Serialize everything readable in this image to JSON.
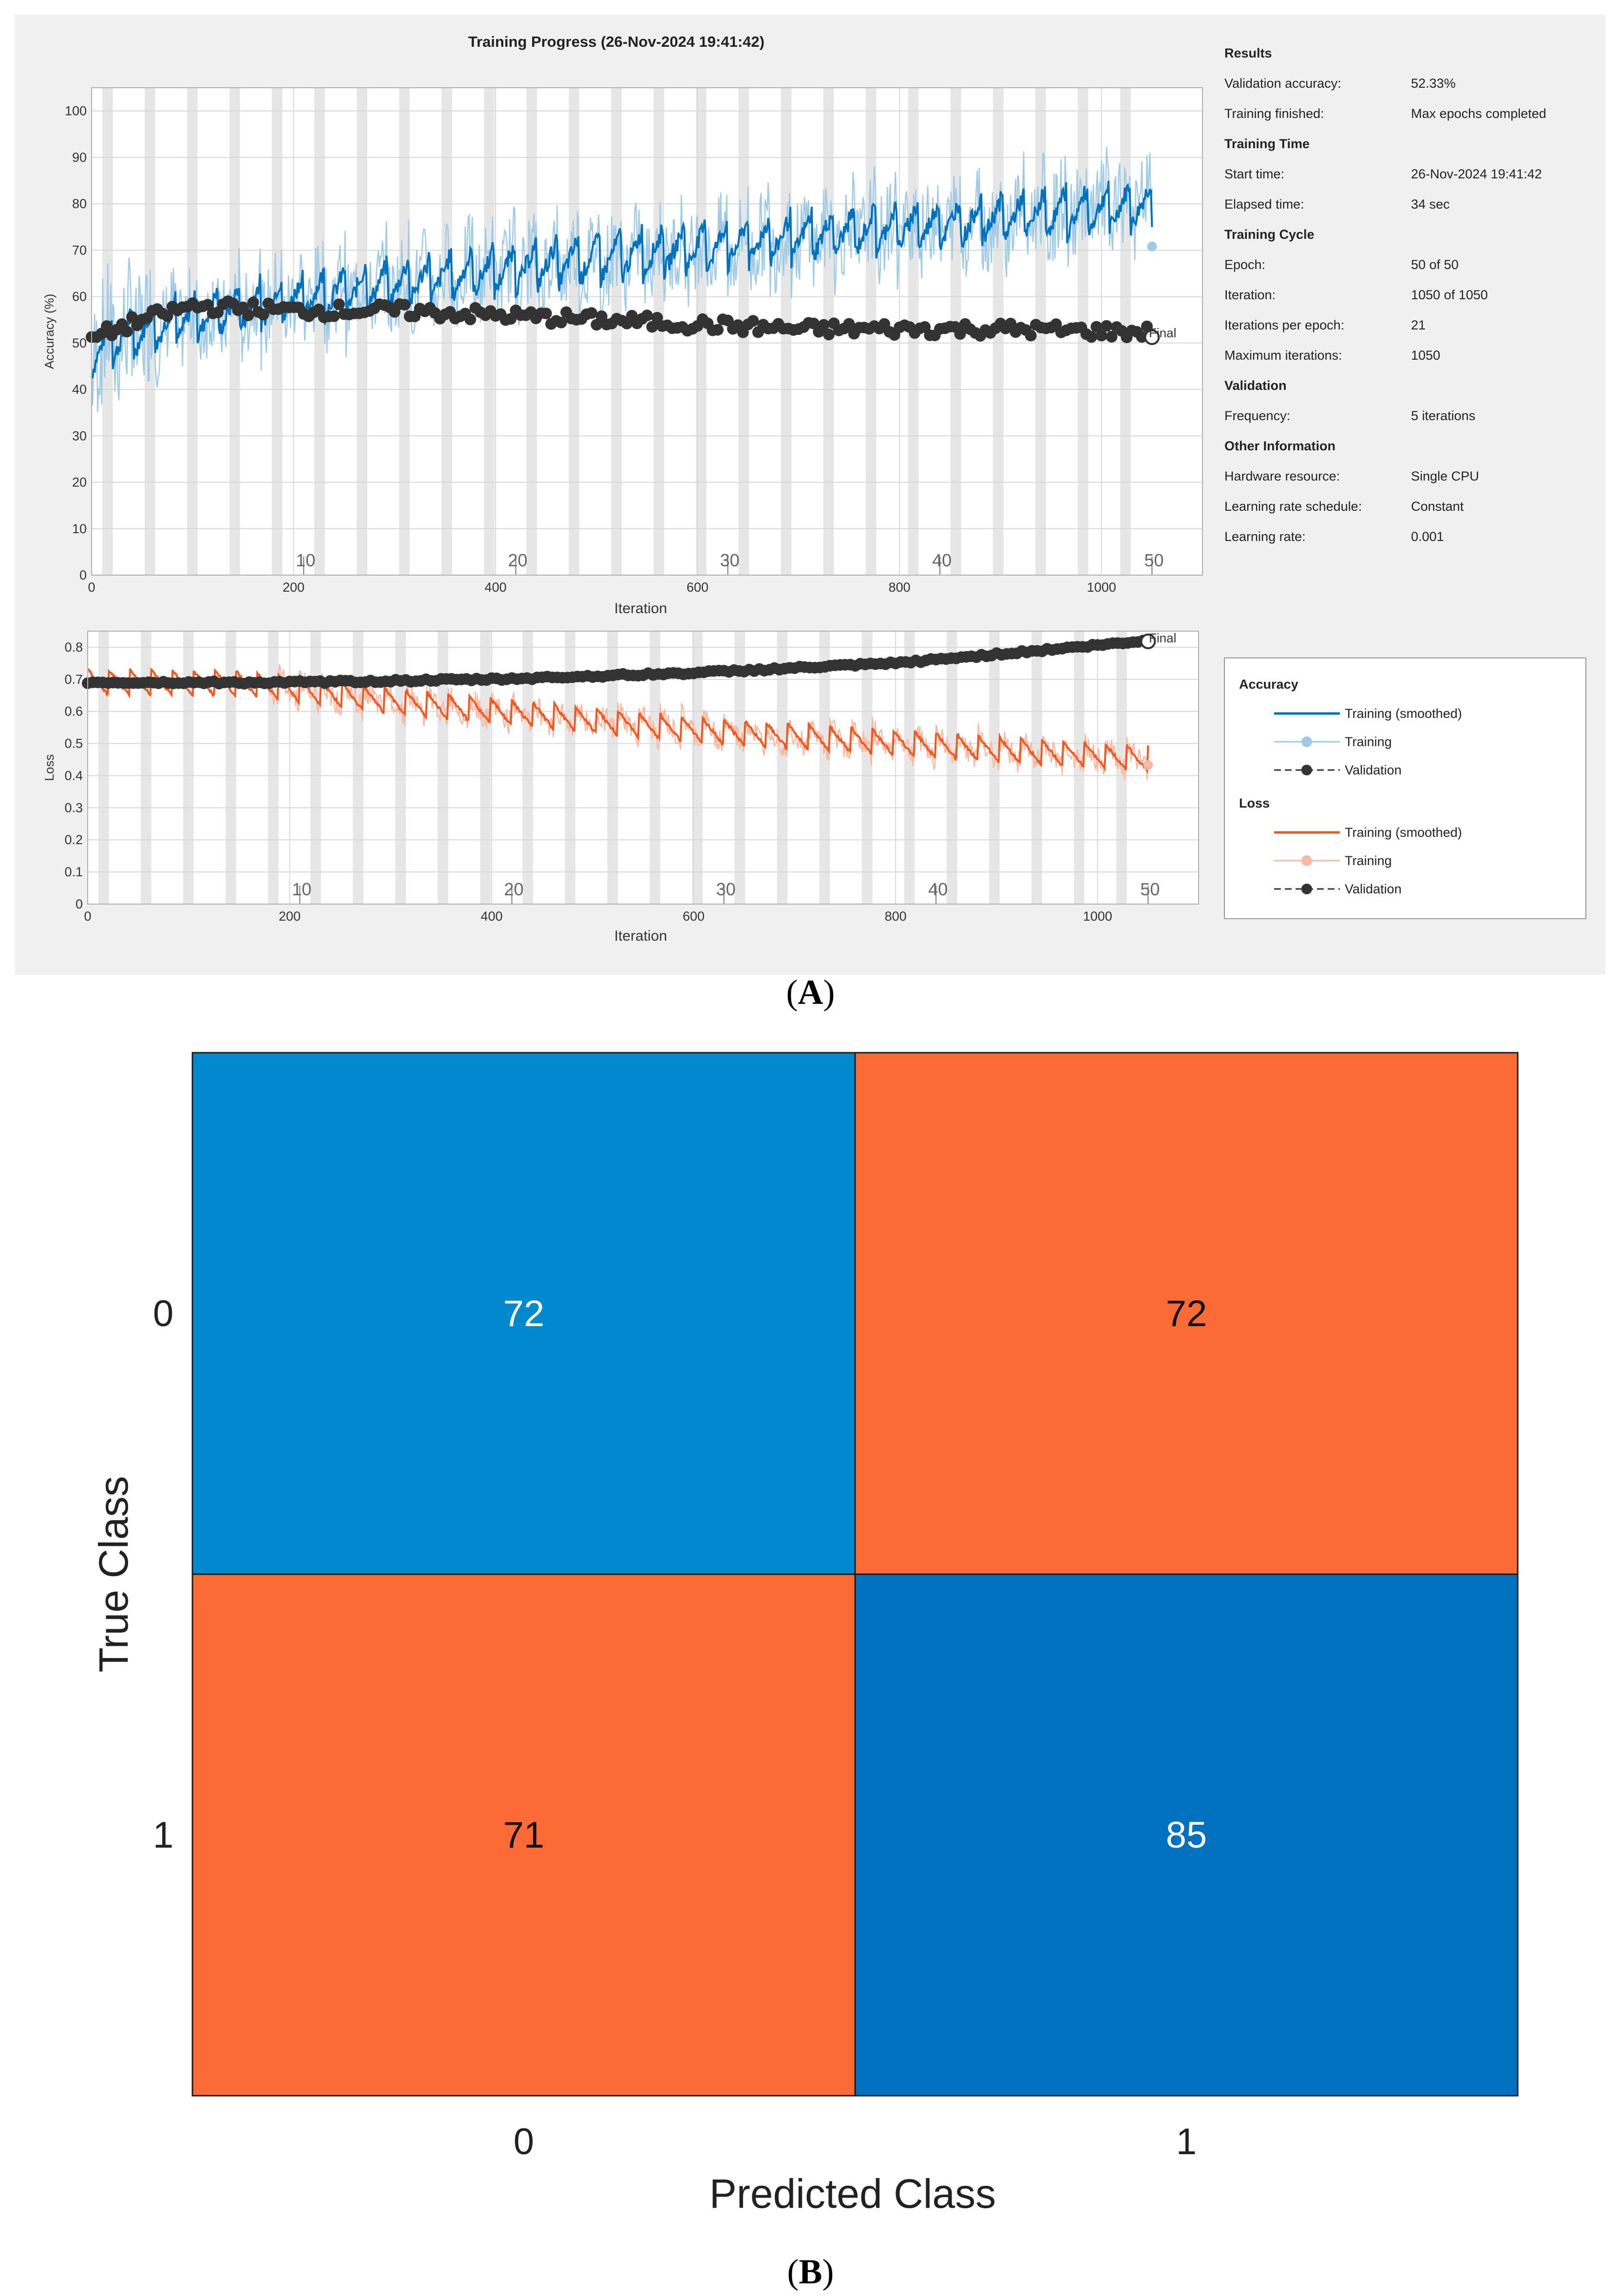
{
  "captions": {
    "a": "A",
    "b": "B"
  },
  "colors": {
    "accuracy_smoothed": "#0072bd",
    "accuracy_raw": "#9ecae6",
    "loss_smoothed": "#f0581f",
    "loss_raw": "#f7b9a3",
    "validation": "#333333",
    "cm_blue_light": "#0089cf",
    "cm_blue_dark": "#0070c0",
    "cm_orange": "#fb6b35"
  },
  "info": {
    "sections": [
      {
        "title": "Results",
        "rows": [
          {
            "label": "Validation accuracy:",
            "value": "52.33%"
          },
          {
            "label": "Training finished:",
            "value": "Max epochs completed"
          }
        ]
      },
      {
        "title": "Training Time",
        "rows": [
          {
            "label": "Start time:",
            "value": "26-Nov-2024 19:41:42"
          },
          {
            "label": "Elapsed time:",
            "value": "34 sec"
          }
        ]
      },
      {
        "title": "Training Cycle",
        "rows": [
          {
            "label": "Epoch:",
            "value": "50 of 50"
          },
          {
            "label": "Iteration:",
            "value": "1050 of 1050"
          },
          {
            "label": "Iterations per epoch:",
            "value": "21"
          },
          {
            "label": "Maximum iterations:",
            "value": "1050"
          }
        ]
      },
      {
        "title": "Validation",
        "rows": [
          {
            "label": "Frequency:",
            "value": "5 iterations"
          }
        ]
      },
      {
        "title": "Other Information",
        "rows": [
          {
            "label": "Hardware resource:",
            "value": "Single CPU"
          },
          {
            "label": "Learning rate schedule:",
            "value": "Constant"
          },
          {
            "label": "Learning rate:",
            "value": "0.001"
          }
        ]
      }
    ]
  },
  "legend": {
    "groups": [
      {
        "title": "Accuracy",
        "entries": [
          "Training (smoothed)",
          "Training",
          "Validation"
        ]
      },
      {
        "title": "Loss",
        "entries": [
          "Training (smoothed)",
          "Training",
          "Validation"
        ]
      }
    ]
  },
  "chart_data": [
    {
      "type": "line",
      "title": "Training Progress (26-Nov-2024 19:41:42)",
      "xlabel": "Iteration",
      "ylabel": "Accuracy (%)",
      "xlim": [
        0,
        1100
      ],
      "ylim": [
        0,
        105
      ],
      "xticks": [
        0,
        200,
        400,
        600,
        800,
        1000
      ],
      "yticks": [
        0,
        10,
        20,
        30,
        40,
        50,
        60,
        70,
        80,
        90,
        100
      ],
      "epoch_labels": [
        10,
        20,
        30,
        40,
        50
      ],
      "iterations_per_epoch": 21,
      "total_iterations": 1050,
      "final_label": "Final",
      "series": [
        {
          "name": "Training (smoothed)",
          "start": 48,
          "end": 80,
          "within_epoch_drop": 5,
          "noise": 2
        },
        {
          "name": "Training",
          "start": 48,
          "end": 80,
          "within_epoch_drop": 5,
          "noise": 8
        },
        {
          "name": "Validation",
          "step": 5,
          "anchors": [
            [
              0,
              51
            ],
            [
              50,
              55
            ],
            [
              100,
              58
            ],
            [
              200,
              57
            ],
            [
              300,
              57
            ],
            [
              400,
              56
            ],
            [
              500,
              55
            ],
            [
              600,
              54
            ],
            [
              700,
              53
            ],
            [
              800,
              53
            ],
            [
              900,
              53
            ],
            [
              1050,
              52.33
            ]
          ]
        }
      ]
    },
    {
      "type": "line",
      "xlabel": "Iteration",
      "ylabel": "Loss",
      "xlim": [
        0,
        1100
      ],
      "ylim": [
        0,
        0.85
      ],
      "xticks": [
        0,
        200,
        400,
        600,
        800,
        1000
      ],
      "yticks": [
        0,
        0.1,
        0.2,
        0.3,
        0.4,
        0.5,
        0.6,
        0.7,
        0.8
      ],
      "epoch_labels": [
        10,
        20,
        30,
        40,
        50
      ],
      "final_label": "Final",
      "series": [
        {
          "name": "Training (smoothed)",
          "anchors": [
            [
              0,
              0.69
            ],
            [
              150,
              0.685
            ],
            [
              200,
              0.67
            ],
            [
              300,
              0.63
            ],
            [
              400,
              0.6
            ],
            [
              500,
              0.57
            ],
            [
              600,
              0.54
            ],
            [
              700,
              0.52
            ],
            [
              800,
              0.5
            ],
            [
              900,
              0.48
            ],
            [
              1050,
              0.45
            ]
          ],
          "within_epoch_drop": 0.04
        },
        {
          "name": "Training",
          "noise": 0.04
        },
        {
          "name": "Validation",
          "step": 5,
          "anchors": [
            [
              0,
              0.69
            ],
            [
              200,
              0.69
            ],
            [
              400,
              0.7
            ],
            [
              600,
              0.72
            ],
            [
              800,
              0.75
            ],
            [
              1050,
              0.82
            ]
          ]
        }
      ]
    },
    {
      "type": "heatmap",
      "xlabel": "Predicted Class",
      "ylabel": "True Class",
      "classes": [
        "0",
        "1"
      ],
      "matrix": [
        [
          72,
          72
        ],
        [
          71,
          85
        ]
      ]
    }
  ]
}
